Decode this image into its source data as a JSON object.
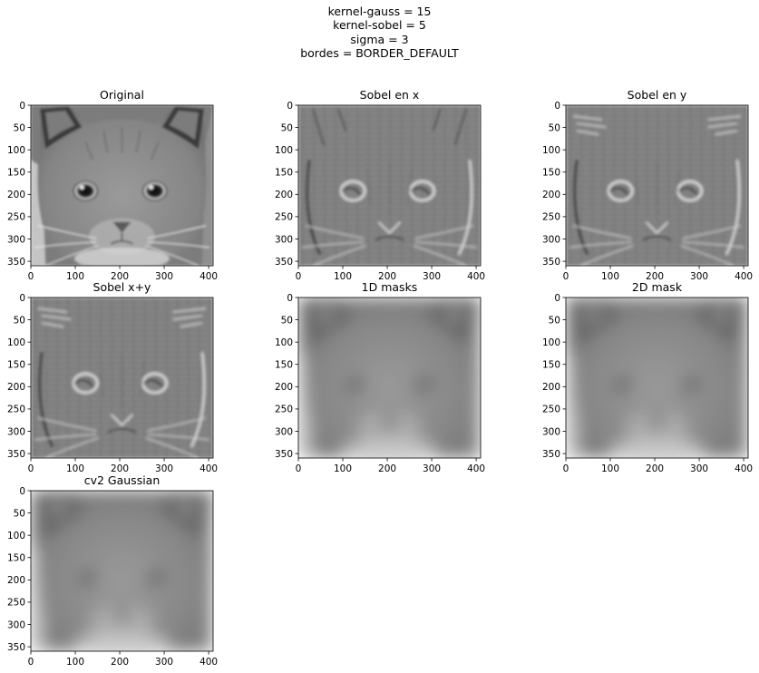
{
  "figure": {
    "suptitle_lines": [
      "kernel-gauss = 15",
      "kernel-sobel = 5",
      "sigma = 3",
      "bordes = BORDER_DEFAULT"
    ]
  },
  "chart_data": [
    {
      "type": "heatmap",
      "title": "Original",
      "render": "cat-original",
      "xticks": [
        0,
        100,
        200,
        300,
        400
      ],
      "yticks": [
        0,
        50,
        100,
        150,
        200,
        250,
        300,
        350
      ],
      "xlim": [
        0,
        410
      ],
      "ylim": [
        360,
        0
      ],
      "colormap": "gray"
    },
    {
      "type": "heatmap",
      "title": "Sobel en x",
      "render": "cat-sobel-x",
      "xticks": [
        0,
        100,
        200,
        300,
        400
      ],
      "yticks": [
        0,
        50,
        100,
        150,
        200,
        250,
        300,
        350
      ],
      "xlim": [
        0,
        410
      ],
      "ylim": [
        360,
        0
      ],
      "colormap": "gray"
    },
    {
      "type": "heatmap",
      "title": "Sobel en y",
      "render": "cat-sobel-y",
      "xticks": [
        0,
        100,
        200,
        300,
        400
      ],
      "yticks": [
        0,
        50,
        100,
        150,
        200,
        250,
        300,
        350
      ],
      "xlim": [
        0,
        410
      ],
      "ylim": [
        360,
        0
      ],
      "colormap": "gray"
    },
    {
      "type": "heatmap",
      "title": "Sobel x+y",
      "render": "cat-sobel-xy",
      "xticks": [
        0,
        100,
        200,
        300,
        400
      ],
      "yticks": [
        0,
        50,
        100,
        150,
        200,
        250,
        300,
        350
      ],
      "xlim": [
        0,
        410
      ],
      "ylim": [
        360,
        0
      ],
      "colormap": "gray"
    },
    {
      "type": "heatmap",
      "title": "1D masks",
      "render": "cat-blur",
      "xticks": [
        0,
        100,
        200,
        300,
        400
      ],
      "yticks": [
        0,
        50,
        100,
        150,
        200,
        250,
        300,
        350
      ],
      "xlim": [
        0,
        410
      ],
      "ylim": [
        360,
        0
      ],
      "colormap": "gray"
    },
    {
      "type": "heatmap",
      "title": "2D mask",
      "render": "cat-blur",
      "xticks": [
        0,
        100,
        200,
        300,
        400
      ],
      "yticks": [
        0,
        50,
        100,
        150,
        200,
        250,
        300,
        350
      ],
      "xlim": [
        0,
        410
      ],
      "ylim": [
        360,
        0
      ],
      "colormap": "gray"
    },
    {
      "type": "heatmap",
      "title": "cv2 Gaussian",
      "render": "cat-blur",
      "xticks": [
        0,
        100,
        200,
        300,
        400
      ],
      "yticks": [
        0,
        50,
        100,
        150,
        200,
        250,
        300,
        350
      ],
      "xlim": [
        0,
        410
      ],
      "ylim": [
        360,
        0
      ],
      "colormap": "gray"
    }
  ]
}
